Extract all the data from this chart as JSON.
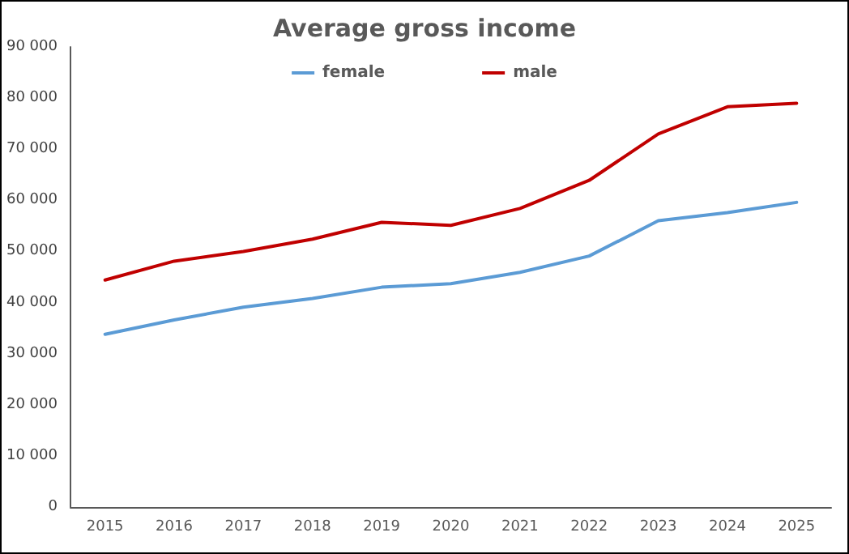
{
  "chart_data": {
    "type": "line",
    "title": "Average gross income",
    "categories": [
      "2015",
      "2016",
      "2017",
      "2018",
      "2019",
      "2020",
      "2021",
      "2022",
      "2023",
      "2024",
      "2025"
    ],
    "series": [
      {
        "name": "female",
        "color": "#5b9bd5",
        "values": [
          33800,
          36600,
          39100,
          40800,
          43000,
          43700,
          45900,
          49100,
          56000,
          57600,
          59600
        ]
      },
      {
        "name": "male",
        "color": "#c00000",
        "values": [
          44400,
          48100,
          50000,
          52400,
          55700,
          55100,
          58400,
          63900,
          73000,
          78300,
          79000
        ]
      }
    ],
    "ylim": [
      0,
      90000
    ],
    "yticks": [
      {
        "value": 0,
        "label": "0"
      },
      {
        "value": 10000,
        "label": "10 000"
      },
      {
        "value": 20000,
        "label": "20 000"
      },
      {
        "value": 30000,
        "label": "30 000"
      },
      {
        "value": 40000,
        "label": "40 000"
      },
      {
        "value": 50000,
        "label": "50 000"
      },
      {
        "value": 60000,
        "label": "60 000"
      },
      {
        "value": 70000,
        "label": "70 000"
      },
      {
        "value": 80000,
        "label": "80 000"
      },
      {
        "value": 90000,
        "label": "90 000"
      }
    ],
    "grid": false,
    "legend": "top",
    "marker": "none",
    "line_style": "solid"
  }
}
